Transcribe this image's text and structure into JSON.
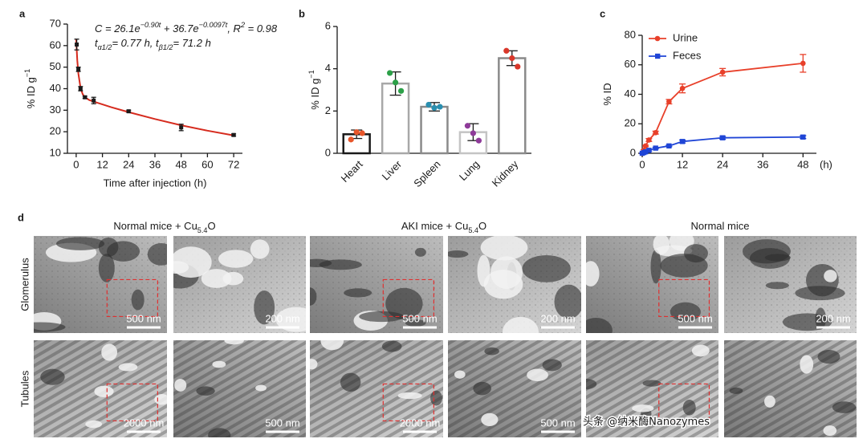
{
  "chart_data": [
    {
      "type": "scatter",
      "panel_label": "a",
      "x": [
        0.25,
        1,
        2,
        4,
        8,
        24,
        48,
        72
      ],
      "values": [
        60.5,
        49,
        40,
        36,
        34.5,
        29.5,
        22,
        18.5
      ],
      "errors": [
        2.5,
        1,
        1,
        0.5,
        1.5,
        0.5,
        1.5,
        0.5
      ],
      "color": "#1a1a1a",
      "fit": {
        "x": [
          0,
          0.5,
          1,
          2,
          3,
          4,
          6,
          8,
          12,
          16,
          24,
          36,
          48,
          60,
          72
        ],
        "values": [
          62.8,
          53.2,
          47.0,
          40.3,
          37.4,
          36.0,
          34.7,
          34.0,
          32.7,
          31.4,
          29.1,
          25.9,
          23.0,
          20.5,
          18.3
        ],
        "color": "#d62b1e"
      },
      "annotation": [
        [
          "C = 26.1e",
          "−0.90t",
          " + 36.7e",
          "−0.0097t",
          ", R",
          "2",
          " = 0.98"
        ],
        [
          "t",
          "α1/2",
          "= 0.77 h, t",
          "β1/2",
          "= 71.2 h"
        ]
      ],
      "xlabel": "Time after injection (h)",
      "ylabel": [
        "% ID g",
        "−1"
      ],
      "xlim": [
        -4,
        76
      ],
      "xticks": [
        0,
        12,
        24,
        36,
        48,
        60,
        72
      ],
      "ylim": [
        10,
        70
      ],
      "yticks": [
        10,
        20,
        30,
        40,
        50,
        60,
        70
      ]
    },
    {
      "type": "bar",
      "panel_label": "b",
      "categories": [
        "Heart",
        "Liver",
        "Spleen",
        "Lung",
        "Kidney"
      ],
      "values": [
        0.9,
        3.3,
        2.2,
        1.0,
        4.5
      ],
      "errors": [
        0.2,
        0.55,
        0.2,
        0.4,
        0.35
      ],
      "points": [
        [
          0.65,
          1.0,
          0.95
        ],
        [
          3.8,
          3.35,
          2.95
        ],
        [
          2.3,
          2.15,
          2.2
        ],
        [
          1.3,
          0.95,
          0.6
        ],
        [
          4.85,
          4.5,
          4.1
        ]
      ],
      "colors": [
        "#e8562a",
        "#2ca048",
        "#2a8fb0",
        "#8e3a99",
        "#d9372a"
      ],
      "edge_colors": [
        "#1a1a1a",
        "#a8a8a8",
        "#8a8a8a",
        "#c4c4c4",
        "#8a8a8a"
      ],
      "ylabel": [
        "% ID g",
        "−1"
      ],
      "ylim": [
        0,
        6
      ],
      "yticks": [
        0,
        2,
        4,
        6
      ]
    },
    {
      "type": "line",
      "panel_label": "c",
      "x": [
        0,
        0.5,
        1,
        2,
        4,
        8,
        12,
        24,
        48
      ],
      "series": [
        {
          "name": "Urine",
          "color": "#e8402a",
          "values": [
            0,
            2,
            5,
            9,
            14,
            35,
            44,
            55,
            61
          ],
          "errors": [
            0,
            0.5,
            0.5,
            1,
            1,
            1.5,
            3,
            2.5,
            6
          ]
        },
        {
          "name": "Feces",
          "color": "#1f45d6",
          "values": [
            0,
            0.5,
            1,
            2,
            3.5,
            5,
            8,
            10.5,
            11
          ],
          "errors": [
            0,
            0.2,
            0.3,
            0.5,
            0.5,
            0.5,
            1,
            1,
            1
          ]
        }
      ],
      "legend": "upper left",
      "ylabel": [
        "% ID"
      ],
      "xunit": "(h)",
      "xlim": [
        0,
        52
      ],
      "xticks": [
        0,
        12,
        24,
        36,
        48
      ],
      "ylim": [
        0,
        80
      ],
      "yticks": [
        0,
        20,
        40,
        60,
        80
      ]
    }
  ],
  "panel_d": {
    "label": "d",
    "groups": [
      [
        "Normal mice + Cu",
        "5.4",
        "O"
      ],
      [
        "AKI mice + Cu",
        "5.4",
        "O"
      ],
      [
        "Normal mice"
      ]
    ],
    "rows": [
      "Glomerulus",
      "Tubules"
    ],
    "scale_bars": [
      [
        "500 nm",
        "200 nm",
        "500 nm",
        "200 nm",
        "500 nm",
        "200 nm"
      ],
      [
        "2000 nm",
        "500 nm",
        "2000 nm",
        "500 nm"
      ]
    ]
  },
  "watermark": "头条 @纳米酶Nanozymes"
}
